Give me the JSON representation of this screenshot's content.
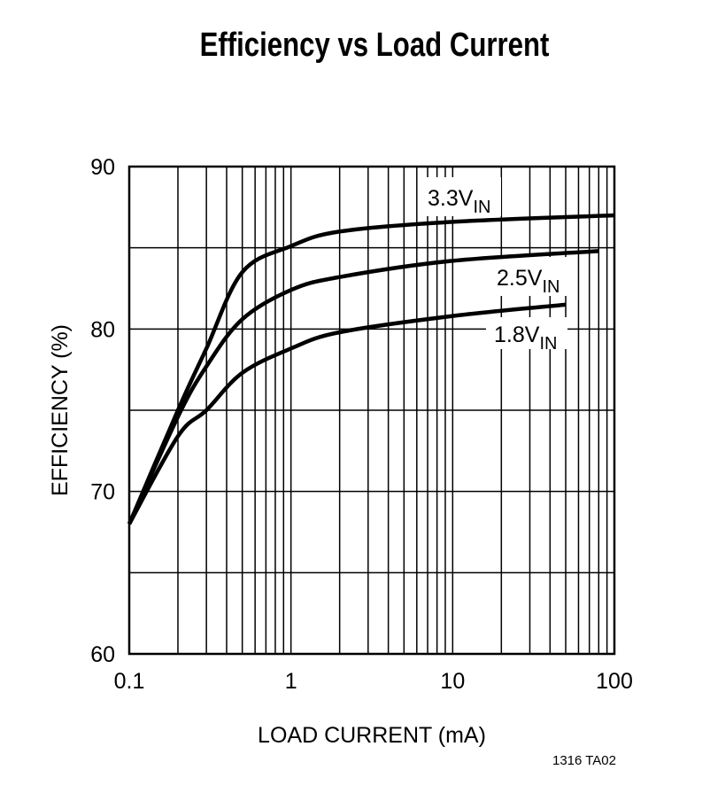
{
  "chart_data": {
    "type": "line",
    "title": "Efficiency vs Load Current",
    "xlabel": "LOAD CURRENT (mA)",
    "ylabel": "EFFICIENCY (%)",
    "x_scale": "log",
    "xlim": [
      0.1,
      100
    ],
    "ylim": [
      60,
      90
    ],
    "x_ticks": [
      "0.1",
      "1",
      "10",
      "100"
    ],
    "y_ticks": [
      "60",
      "70",
      "80",
      "90"
    ],
    "grid": true,
    "series": [
      {
        "name": "3.3V",
        "name_sub": "IN",
        "x": [
          0.1,
          0.2,
          0.3,
          0.5,
          1,
          2,
          10,
          100
        ],
        "y": [
          68,
          75.0,
          78.8,
          83.5,
          85.1,
          86.0,
          86.6,
          87.0
        ]
      },
      {
        "name": "2.5V",
        "name_sub": "IN",
        "x": [
          0.1,
          0.2,
          0.3,
          0.5,
          1,
          2,
          10,
          80
        ],
        "y": [
          68,
          74.6,
          77.7,
          80.6,
          82.4,
          83.2,
          84.2,
          84.8
        ]
      },
      {
        "name": "1.8V",
        "name_sub": "IN",
        "x": [
          0.1,
          0.2,
          0.3,
          0.5,
          1,
          2,
          10,
          50
        ],
        "y": [
          68,
          73.4,
          75.0,
          77.3,
          78.8,
          79.8,
          80.8,
          81.5
        ]
      }
    ],
    "line_color": "#000000"
  },
  "footnote": "1316 TA02"
}
